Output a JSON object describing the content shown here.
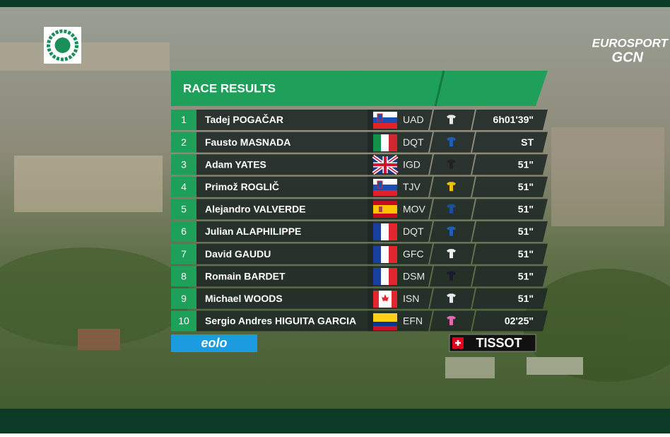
{
  "header": {
    "title": "RACE RESULTS"
  },
  "results": [
    {
      "rank": 1,
      "rider": "Tadej POGAČAR",
      "team": "UAD",
      "time": "6h01'39\""
    },
    {
      "rank": 2,
      "rider": "Fausto MASNADA",
      "team": "DQT",
      "time": "ST"
    },
    {
      "rank": 3,
      "rider": "Adam YATES",
      "team": "IGD",
      "time": "51\""
    },
    {
      "rank": 4,
      "rider": "Primož ROGLIČ",
      "team": "TJV",
      "time": "51\""
    },
    {
      "rank": 5,
      "rider": "Alejandro VALVERDE",
      "team": "MOV",
      "time": "51\""
    },
    {
      "rank": 6,
      "rider": "Julian ALAPHILIPPE",
      "team": "DQT",
      "time": "51\""
    },
    {
      "rank": 7,
      "rider": "David GAUDU",
      "team": "GFC",
      "time": "51\""
    },
    {
      "rank": 8,
      "rider": "Romain BARDET",
      "team": "DSM",
      "time": "51\""
    },
    {
      "rank": 9,
      "rider": "Michael WOODS",
      "team": "ISN",
      "time": "51\""
    },
    {
      "rank": 10,
      "rider": "Sergio Andres HIGUITA GARCIA",
      "team": "EFN",
      "time": "02'25\""
    }
  ],
  "sponsors": {
    "left": "eolo",
    "right": "TISSOT"
  },
  "broadcaster": {
    "name": "EUROSPORT",
    "channel": "GCN"
  }
}
